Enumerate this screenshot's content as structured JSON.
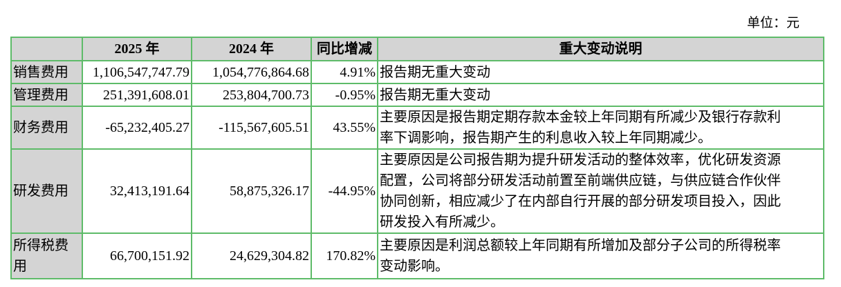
{
  "unit_label": "单位：元",
  "table": {
    "headers": [
      "",
      "2025 年",
      "2024 年",
      "同比增减",
      "重大变动说明"
    ],
    "rows": [
      {
        "item": "销售费用",
        "y2025": "1,106,547,747.79",
        "y2024": "1,054,776,864.68",
        "change": "4.91%",
        "note": [
          "报告期无重大变动"
        ]
      },
      {
        "item": "管理费用",
        "y2025": "251,391,608.01",
        "y2024": "253,804,700.73",
        "change": "-0.95%",
        "note": [
          "报告期无重大变动"
        ]
      },
      {
        "item": "财务费用",
        "y2025": "-65,232,405.27",
        "y2024": "-115,567,605.51",
        "change": "43.55%",
        "note": [
          "主要原因是报告期定期存款本金较上年同期有所减少及银行存款利",
          "率下调影响，报告期产生的利息收入较上年同期减少。"
        ]
      },
      {
        "item": "研发费用",
        "y2025": "32,413,191.64",
        "y2024": "58,875,326.17",
        "change": "-44.95%",
        "note": [
          "主要原因是公司报告期为提升研发活动的整体效率，优化研发资源",
          "配置，公司将部分研发活动前置至前端供应链，与供应链合作伙伴",
          "协同创新，相应减少了在内部自行开展的部分研发项目投入，因此",
          "研发投入有所减少。"
        ]
      },
      {
        "item": "所得税费用",
        "item_lines": [
          "所得税费",
          "用"
        ],
        "y2025": "66,700,151.92",
        "y2024": "24,629,304.82",
        "change": "170.82%",
        "note": [
          "主要原因是利润总额较上年同期有所增加及部分子公司的所得税率",
          "变动影响。"
        ]
      }
    ]
  },
  "colors": {
    "border": "#5dbb68",
    "header_bg": "#d4d4d4"
  }
}
